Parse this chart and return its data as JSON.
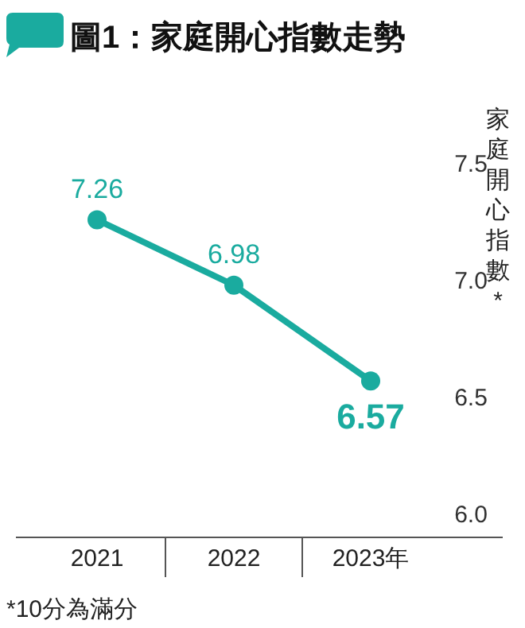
{
  "chart_data": {
    "type": "line",
    "title": "圖1：家庭開心指數走勢",
    "ylabel": "家庭開心指數*",
    "categories": [
      "2021",
      "2022",
      "2023年"
    ],
    "series": [
      {
        "color": "#1aab9f",
        "values": [
          7.26,
          6.98,
          6.57
        ]
      }
    ],
    "ylim": [
      5.9,
      7.5
    ],
    "yticks": [
      {
        "value": 6,
        "label": "6.0"
      },
      6.5,
      {
        "value": 7,
        "label": "7.0"
      },
      7.5
    ],
    "data_labels": true,
    "marker": "circle",
    "line_style": "solid",
    "grid": false,
    "annotations": [
      "*10分為滿分"
    ]
  }
}
